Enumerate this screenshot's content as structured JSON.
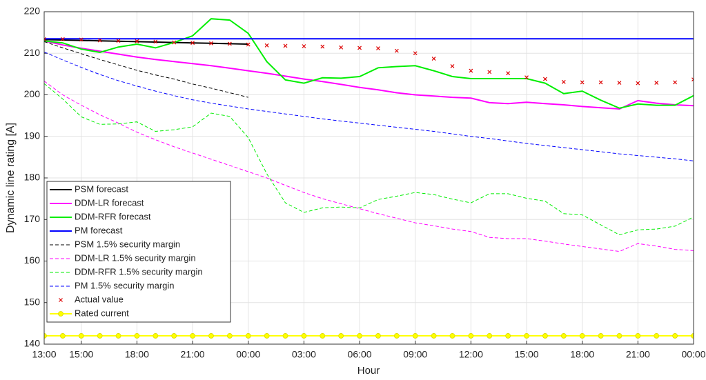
{
  "chart_data": {
    "type": "line",
    "xlabel": "Hour",
    "ylabel": "Dynamic line rating [A]",
    "categories": [
      "13:00",
      null,
      "15:00",
      null,
      null,
      "18:00",
      null,
      null,
      "21:00",
      null,
      null,
      "00:00",
      null,
      null,
      "03:00",
      null,
      null,
      "06:00",
      null,
      null,
      "09:00",
      null,
      null,
      "12:00",
      null,
      null,
      "15:00",
      null,
      null,
      "18:00",
      null,
      null,
      "21:00",
      null,
      null,
      "00:00"
    ],
    "ylim": [
      140,
      220
    ],
    "yticks": [
      140,
      150,
      160,
      170,
      180,
      190,
      200,
      210,
      220
    ],
    "grid": true,
    "legend": "lower left",
    "series": [
      {
        "name": "PSM forecast",
        "color": "#000000",
        "style": "solid",
        "marker": null,
        "values": [
          213.3,
          213.2,
          213.1,
          213.0,
          212.9,
          212.8,
          212.7,
          212.6,
          212.5,
          212.4,
          212.3,
          212.2,
          null,
          null,
          null,
          null,
          null,
          null,
          null,
          null,
          null,
          null,
          null,
          null,
          null,
          null,
          null,
          null,
          null,
          null,
          null,
          null,
          null,
          null,
          null,
          null
        ]
      },
      {
        "name": "DDM-LR forecast",
        "color": "#ff00ff",
        "style": "solid",
        "marker": null,
        "values": [
          213,
          212,
          211.2,
          210.5,
          209.8,
          209.1,
          208.5,
          208,
          207.5,
          207,
          206.4,
          205.8,
          205.2,
          204.5,
          203.8,
          203.2,
          202.5,
          201.8,
          201.2,
          200.5,
          200,
          199.7,
          199.4,
          199.2,
          198.1,
          197.9,
          198.2,
          197.9,
          197.6,
          197.2,
          196.9,
          196.6,
          198.6,
          198,
          197.6,
          197.4
        ]
      },
      {
        "name": "DDM-RFR forecast",
        "color": "#00ee00",
        "style": "solid",
        "marker": null,
        "values": [
          213,
          212.5,
          211,
          210.2,
          211.5,
          212.2,
          211.3,
          212.6,
          214.2,
          218.3,
          218,
          214.8,
          208,
          203.6,
          202.8,
          204.1,
          204,
          204.4,
          206.5,
          206.8,
          207,
          205.8,
          204.4,
          203.9,
          203.9,
          203.9,
          203.9,
          202.8,
          200.3,
          200.9,
          198.7,
          196.8,
          197.8,
          197.5,
          197.5,
          199.8
        ]
      },
      {
        "name": "PM forecast",
        "color": "#0000ff",
        "style": "solid",
        "marker": null,
        "values": [
          213.5,
          213.5,
          213.5,
          213.5,
          213.5,
          213.5,
          213.5,
          213.5,
          213.5,
          213.5,
          213.5,
          213.5,
          213.5,
          213.5,
          213.5,
          213.5,
          213.5,
          213.5,
          213.5,
          213.5,
          213.5,
          213.5,
          213.5,
          213.5,
          213.5,
          213.5,
          213.5,
          213.5,
          213.5,
          213.5,
          213.5,
          213.5,
          213.5,
          213.5,
          213.5,
          213.5
        ]
      },
      {
        "name": "PSM 1.5% security margin",
        "color": "#000000",
        "style": "dashed",
        "marker": null,
        "values": [
          212.8,
          211.3,
          209.9,
          208.5,
          207.2,
          205.9,
          204.8,
          203.8,
          202.6,
          201.6,
          200.5,
          199.4,
          null,
          null,
          null,
          null,
          null,
          null,
          null,
          null,
          null,
          null,
          null,
          null,
          null,
          null,
          null,
          null,
          null,
          null,
          null,
          null,
          null,
          null,
          null,
          null
        ]
      },
      {
        "name": "DDM-LR 1.5% security margin",
        "color": "#ff00ff",
        "style": "dashed",
        "marker": null,
        "values": [
          203.3,
          200,
          197.5,
          195.2,
          193.2,
          191,
          189.2,
          187.5,
          186,
          184.5,
          183,
          181.5,
          180,
          178.2,
          176.5,
          175,
          173.8,
          172.6,
          171.4,
          170.3,
          169.2,
          168.5,
          167.7,
          167.1,
          165.7,
          165.4,
          165.4,
          164.8,
          164.1,
          163.5,
          162.9,
          162.3,
          164.2,
          163.6,
          162.8,
          162.5
        ]
      },
      {
        "name": "DDM-RFR 1.5% security margin",
        "color": "#00ee00",
        "style": "dashed",
        "marker": null,
        "values": [
          202.7,
          199,
          194.7,
          192.9,
          193,
          193.5,
          191.2,
          191.6,
          192.3,
          195.6,
          194.8,
          189.7,
          181,
          174,
          171.7,
          172.8,
          173,
          172.8,
          174.8,
          175.6,
          176.5,
          176,
          174.9,
          174,
          176.2,
          176.2,
          175.1,
          174.4,
          171.4,
          171.1,
          168.7,
          166.3,
          167.5,
          167.7,
          168.4,
          170.6
        ]
      },
      {
        "name": "PM 1.5% security margin",
        "color": "#0000ff",
        "style": "dashed",
        "marker": null,
        "values": [
          210.3,
          208.4,
          206.6,
          204.9,
          203.4,
          202.1,
          200.9,
          199.8,
          198.8,
          198,
          197.3,
          196.6,
          196,
          195.4,
          194.8,
          194.2,
          193.7,
          193.2,
          192.7,
          192.2,
          191.7,
          191.2,
          190.6,
          190,
          189.5,
          188.9,
          188.3,
          187.8,
          187.3,
          186.8,
          186.3,
          185.8,
          185.4,
          185,
          184.6,
          184.1
        ]
      },
      {
        "name": "Actual value",
        "color": "#dd0000",
        "style": "none",
        "marker": "x",
        "values": [
          213.4,
          213.4,
          213.3,
          213.1,
          213,
          212.9,
          212.8,
          212.6,
          212.5,
          212.4,
          212.3,
          212.1,
          211.9,
          211.8,
          211.7,
          211.6,
          211.4,
          211.3,
          211.2,
          210.6,
          210,
          208.7,
          206.9,
          205.8,
          205.5,
          205.2,
          204.2,
          203.8,
          203.1,
          203,
          203,
          202.9,
          202.8,
          202.9,
          203,
          203.7
        ]
      },
      {
        "name": "Rated current",
        "color": "#ffff00",
        "style": "solid",
        "marker": "o",
        "values": [
          142,
          142,
          142,
          142,
          142,
          142,
          142,
          142,
          142,
          142,
          142,
          142,
          142,
          142,
          142,
          142,
          142,
          142,
          142,
          142,
          142,
          142,
          142,
          142,
          142,
          142,
          142,
          142,
          142,
          142,
          142,
          142,
          142,
          142,
          142,
          142
        ]
      }
    ]
  }
}
